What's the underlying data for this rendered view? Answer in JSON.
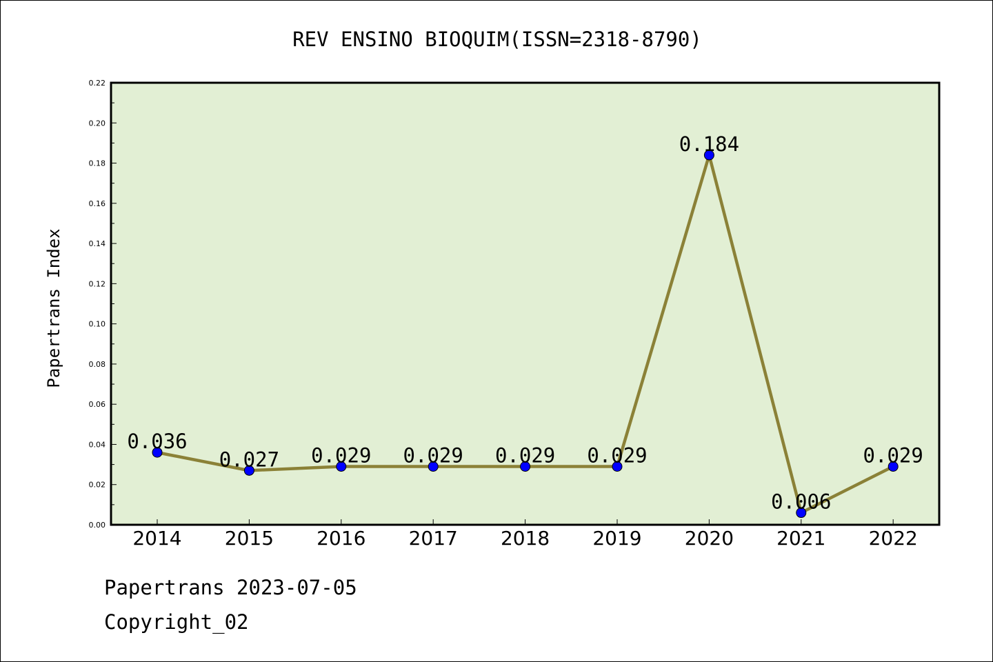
{
  "chart_data": {
    "type": "line",
    "title": "REV ENSINO BIOQUIM(ISSN=2318-8790)",
    "xlabel": "",
    "ylabel": "Papertrans Index",
    "categories": [
      "2014",
      "2015",
      "2016",
      "2017",
      "2018",
      "2019",
      "2020",
      "2021",
      "2022"
    ],
    "series": [
      {
        "values": [
          0.036,
          0.027,
          0.029,
          0.029,
          0.029,
          0.029,
          0.184,
          0.006,
          0.029
        ],
        "data_labels": [
          "0.036",
          "0.027",
          "0.029",
          "0.029",
          "0.029",
          "0.029",
          "0.184",
          "0.006",
          "0.029"
        ]
      }
    ],
    "ylim": [
      0,
      0.22
    ],
    "yticks": [
      "0.00",
      "0.02",
      "0.04",
      "0.06",
      "0.08",
      "0.10",
      "0.12",
      "0.14",
      "0.16",
      "0.18",
      "0.20",
      "0.22"
    ],
    "grid": false,
    "legend": "none",
    "colors": {
      "plot_background": "#e2efd4",
      "line": "#8b8137",
      "marker": "#0000ff"
    }
  },
  "footer": {
    "date_line": "Papertrans 2023-07-05",
    "copyright": "Copyright_02"
  }
}
